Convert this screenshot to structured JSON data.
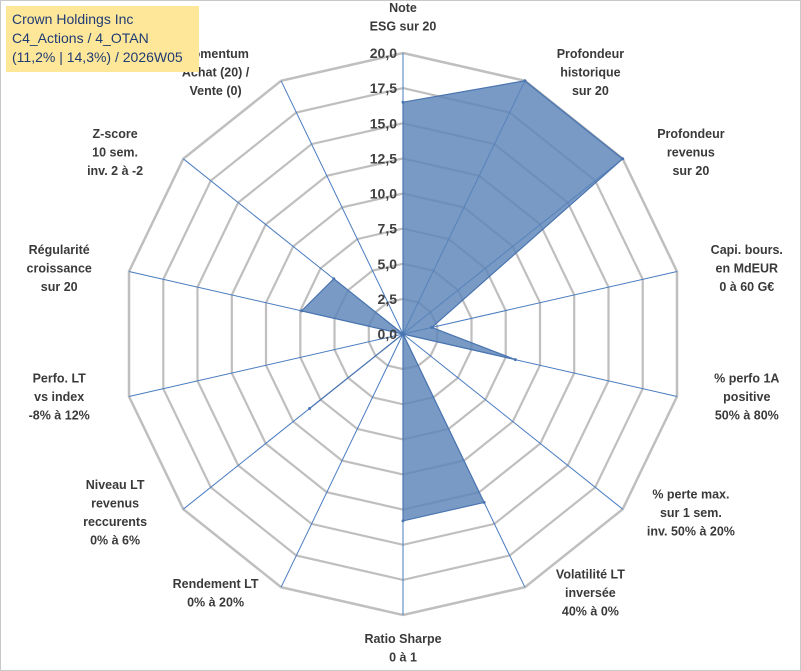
{
  "info": {
    "line1": "Crown Holdings Inc",
    "line2": "C4_Actions / 4_OTAN",
    "line3": "(11,2% | 14,3%) / 2026W05"
  },
  "colors": {
    "fill": "#5a84b8",
    "stroke": "#4a75b0",
    "grid": "#bfbfbf",
    "spoke": "#4a7cc0"
  },
  "chart_data": {
    "type": "radar",
    "title": "",
    "rmax": 20,
    "ticks": [
      "0,0",
      "2,5",
      "5,0",
      "7,5",
      "10,0",
      "12,5",
      "15,0",
      "17,5",
      "20,0"
    ],
    "axes": [
      {
        "label": [
          "Note",
          "ESG sur 20"
        ],
        "value": 16.5
      },
      {
        "label": [
          "Profondeur",
          "historique",
          "sur 20"
        ],
        "value": 20
      },
      {
        "label": [
          "Profondeur",
          "revenus",
          "sur 20"
        ],
        "value": 20
      },
      {
        "label": [
          "Capi. bours.",
          "en MdEUR",
          "0 à 60 G€"
        ],
        "value": 2.1
      },
      {
        "label": [
          "% perfo 1A",
          "positive",
          "50% à 80%"
        ],
        "value": 8.2
      },
      {
        "label": [
          "% perte max.",
          "sur 1 sem.",
          "inv. 50% à 20%"
        ],
        "value": 0
      },
      {
        "label": [
          "Volatilité LT",
          "inversée",
          "40% à 0%"
        ],
        "value": 13.3
      },
      {
        "label": [
          "Ratio Sharpe",
          "0 à 1"
        ],
        "value": 13.3
      },
      {
        "label": [
          "Rendement LT",
          "0% à 20%"
        ],
        "value": 0
      },
      {
        "label": [
          "Niveau LT",
          "revenus",
          "reccurents",
          "0% à 6%"
        ],
        "value": 8.5
      },
      {
        "label": [
          "Perfo. LT",
          "vs index",
          "-8% à 12%"
        ],
        "value": 0
      },
      {
        "label": [
          "Régularité",
          "croissance",
          "sur 20"
        ],
        "value": 7.4
      },
      {
        "label": [
          "Z-score",
          "10 sem.",
          "inv. 2 à -2"
        ],
        "value": 6.3
      },
      {
        "label": [
          "Momentum",
          "Achat (20) /",
          "Vente (0)"
        ],
        "value": 0
      }
    ]
  }
}
